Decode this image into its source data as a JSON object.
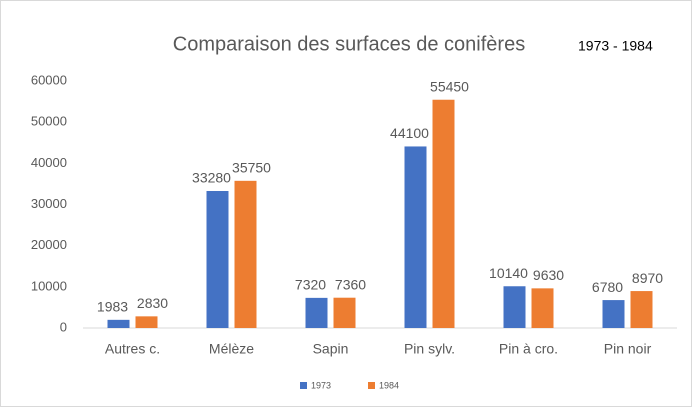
{
  "chart_data": {
    "type": "bar",
    "title": "Comparaison des surfaces de conifères",
    "subtitle": "1973 - 1984",
    "categories": [
      "Autres c.",
      "Mélèze",
      "Sapin",
      "Pin sylv.",
      "Pin à cro.",
      "Pin noir"
    ],
    "series": [
      {
        "name": "1973",
        "color": "#4472c4",
        "values": [
          1983,
          33280,
          7320,
          44100,
          10140,
          6780
        ]
      },
      {
        "name": "1984",
        "color": "#ed7d31",
        "values": [
          2830,
          35750,
          7360,
          55450,
          9630,
          8970
        ]
      }
    ],
    "ylim": [
      0,
      60000
    ],
    "yticks": [
      0,
      10000,
      20000,
      30000,
      40000,
      50000,
      60000
    ],
    "grid": false,
    "legend": "bottom"
  }
}
